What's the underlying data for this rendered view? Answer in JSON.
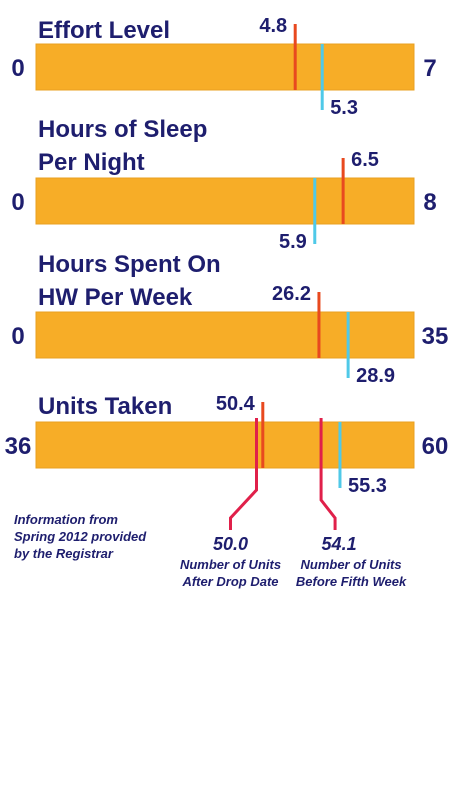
{
  "colors": {
    "bar": "#f7ad27",
    "bar_border": "#e8a020",
    "red": "#e8491f",
    "blue": "#4fc9e8",
    "magenta": "#e0204a",
    "text": "#1e1e6e"
  },
  "chart_data": [
    {
      "type": "bar",
      "title": "Effort Level",
      "min_label": "0",
      "max_label": "7",
      "range": [
        0,
        7
      ],
      "red_value": 4.8,
      "red_label": "4.8",
      "blue_value": 5.3,
      "blue_label": "5.3"
    },
    {
      "type": "bar",
      "title": "Hours of Sleep",
      "title_line2": "Per Night",
      "min_label": "0",
      "max_label": "8",
      "range": [
        0,
        8
      ],
      "red_value": 6.5,
      "red_label": "6.5",
      "blue_value": 5.9,
      "blue_label": "5.9"
    },
    {
      "type": "bar",
      "title": "Hours Spent On",
      "title_line2": "HW Per Week",
      "min_label": "0",
      "max_label": "35",
      "range": [
        0,
        35
      ],
      "red_value": 26.2,
      "red_label": "26.2",
      "blue_value": 28.9,
      "blue_label": "28.9"
    },
    {
      "type": "bar",
      "title": "Units Taken",
      "min_label": "36",
      "max_label": "60",
      "range": [
        36,
        60
      ],
      "red_value": 50.4,
      "red_label": "50.4",
      "blue_value": 55.3,
      "blue_label": "55.3",
      "magenta_markers": [
        {
          "value": 50.0,
          "label": "50.0",
          "line1": "Number of Units",
          "line2": "After Drop Date"
        },
        {
          "value": 54.1,
          "label": "54.1",
          "line1": "Number of Units",
          "line2": "Before Fifth Week"
        }
      ]
    }
  ],
  "source_note": [
    "Information from",
    "Spring 2012 provided",
    "by the Registrar"
  ]
}
